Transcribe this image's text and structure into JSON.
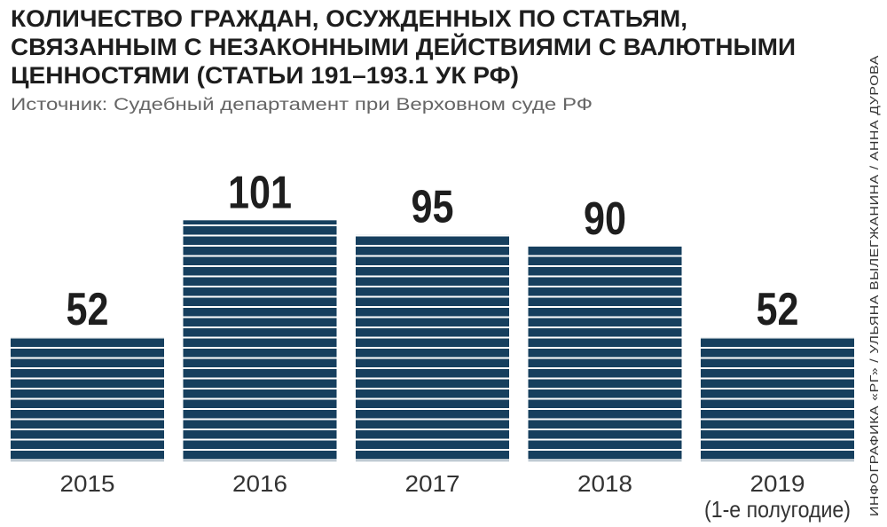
{
  "chart_data": {
    "type": "bar",
    "title": [
      "КОЛИЧЕСТВО ГРАЖДАН, ОСУЖДЕННЫХ ПО СТАТЬЯМ,",
      "СВЯЗАННЫМ С НЕЗАКОННЫМИ ДЕЙСТВИЯМИ С ВАЛЮТНЫМИ",
      "ЦЕННОСТЯМИ (СТАТЬИ 191–193.1 УК РФ)"
    ],
    "subtitle": "Источник: Судебный департамент при Верховном суде РФ",
    "credit": "ИНФОГРАФИКА «РГ» / УЛЬЯНА ВЫЛЕГЖАНИНА / АННА ДУРОВА",
    "categories": [
      "2015",
      "2016",
      "2017",
      "2018",
      "2019"
    ],
    "annotation": "(1-е полугодие)",
    "values": [
      52,
      101,
      95,
      90,
      52
    ],
    "color": "#163f5e"
  }
}
